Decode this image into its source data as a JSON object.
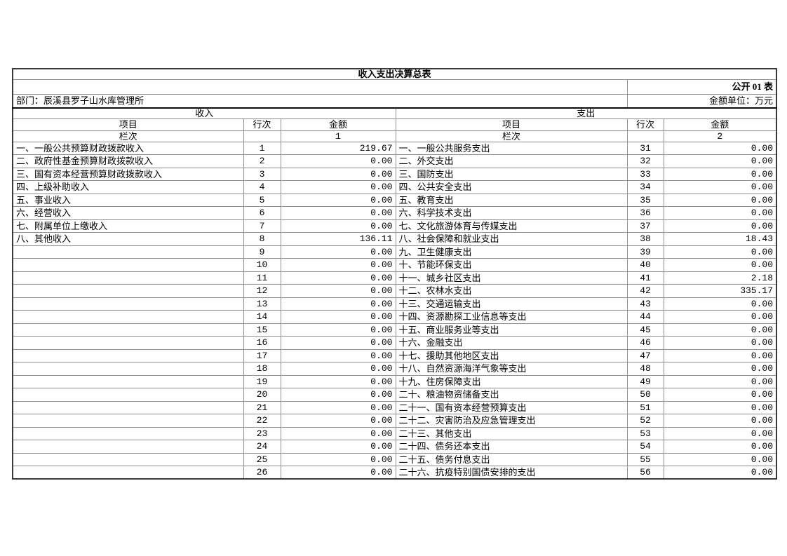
{
  "page": {
    "title": "收入支出决算总表",
    "table_code": "公开 01 表",
    "department_label": "部门：辰溪县罗子山水库管理所",
    "unit_label": "金额单位：万元"
  },
  "headers": {
    "income_section": "收入",
    "expense_section": "支出",
    "item": "项目",
    "row_no": "行次",
    "amount": "金额",
    "column_label": "栏次",
    "income_column_no": "1",
    "expense_column_no": "2"
  },
  "income_rows": [
    {
      "item": "一、一般公共预算财政拨款收入",
      "row": "1",
      "amount": "219.67"
    },
    {
      "item": "二、政府性基金预算财政拨款收入",
      "row": "2",
      "amount": "0.00"
    },
    {
      "item": "三、国有资本经营预算财政拨款收入",
      "row": "3",
      "amount": "0.00"
    },
    {
      "item": "四、上级补助收入",
      "row": "4",
      "amount": "0.00"
    },
    {
      "item": "五、事业收入",
      "row": "5",
      "amount": "0.00"
    },
    {
      "item": "六、经营收入",
      "row": "6",
      "amount": "0.00"
    },
    {
      "item": "七、附属单位上缴收入",
      "row": "7",
      "amount": "0.00"
    },
    {
      "item": "八、其他收入",
      "row": "8",
      "amount": "136.11"
    },
    {
      "item": "",
      "row": "9",
      "amount": "0.00"
    },
    {
      "item": "",
      "row": "10",
      "amount": "0.00"
    },
    {
      "item": "",
      "row": "11",
      "amount": "0.00"
    },
    {
      "item": "",
      "row": "12",
      "amount": "0.00"
    },
    {
      "item": "",
      "row": "13",
      "amount": "0.00"
    },
    {
      "item": "",
      "row": "14",
      "amount": "0.00"
    },
    {
      "item": "",
      "row": "15",
      "amount": "0.00"
    },
    {
      "item": "",
      "row": "16",
      "amount": "0.00"
    },
    {
      "item": "",
      "row": "17",
      "amount": "0.00"
    },
    {
      "item": "",
      "row": "18",
      "amount": "0.00"
    },
    {
      "item": "",
      "row": "19",
      "amount": "0.00"
    },
    {
      "item": "",
      "row": "20",
      "amount": "0.00"
    },
    {
      "item": "",
      "row": "21",
      "amount": "0.00"
    },
    {
      "item": "",
      "row": "22",
      "amount": "0.00"
    },
    {
      "item": "",
      "row": "23",
      "amount": "0.00"
    },
    {
      "item": "",
      "row": "24",
      "amount": "0.00"
    },
    {
      "item": "",
      "row": "25",
      "amount": "0.00"
    },
    {
      "item": "",
      "row": "26",
      "amount": "0.00"
    }
  ],
  "expense_rows": [
    {
      "item": "一、一般公共服务支出",
      "row": "31",
      "amount": "0.00"
    },
    {
      "item": "二、外交支出",
      "row": "32",
      "amount": "0.00"
    },
    {
      "item": "三、国防支出",
      "row": "33",
      "amount": "0.00"
    },
    {
      "item": "四、公共安全支出",
      "row": "34",
      "amount": "0.00"
    },
    {
      "item": "五、教育支出",
      "row": "35",
      "amount": "0.00"
    },
    {
      "item": "六、科学技术支出",
      "row": "36",
      "amount": "0.00"
    },
    {
      "item": "七、文化旅游体育与传媒支出",
      "row": "37",
      "amount": "0.00"
    },
    {
      "item": "八、社会保障和就业支出",
      "row": "38",
      "amount": "18.43"
    },
    {
      "item": "九、卫生健康支出",
      "row": "39",
      "amount": "0.00"
    },
    {
      "item": "十、节能环保支出",
      "row": "40",
      "amount": "0.00"
    },
    {
      "item": "十一、城乡社区支出",
      "row": "41",
      "amount": "2.18"
    },
    {
      "item": "十二、农林水支出",
      "row": "42",
      "amount": "335.17"
    },
    {
      "item": "十三、交通运输支出",
      "row": "43",
      "amount": "0.00"
    },
    {
      "item": "十四、资源勘探工业信息等支出",
      "row": "44",
      "amount": "0.00"
    },
    {
      "item": "十五、商业服务业等支出",
      "row": "45",
      "amount": "0.00"
    },
    {
      "item": "十六、金融支出",
      "row": "46",
      "amount": "0.00"
    },
    {
      "item": "十七、援助其他地区支出",
      "row": "47",
      "amount": "0.00"
    },
    {
      "item": "十八、自然资源海洋气象等支出",
      "row": "48",
      "amount": "0.00"
    },
    {
      "item": "十九、住房保障支出",
      "row": "49",
      "amount": "0.00"
    },
    {
      "item": "二十、粮油物资储备支出",
      "row": "50",
      "amount": "0.00"
    },
    {
      "item": "二十一、国有资本经营预算支出",
      "row": "51",
      "amount": "0.00"
    },
    {
      "item": "二十二、灾害防治及应急管理支出",
      "row": "52",
      "amount": "0.00"
    },
    {
      "item": "二十三、其他支出",
      "row": "53",
      "amount": "0.00"
    },
    {
      "item": "二十四、债务还本支出",
      "row": "54",
      "amount": "0.00"
    },
    {
      "item": "二十五、债务付息支出",
      "row": "55",
      "amount": "0.00"
    },
    {
      "item": "二十六、抗疫特别国债安排的支出",
      "row": "56",
      "amount": "0.00"
    }
  ]
}
